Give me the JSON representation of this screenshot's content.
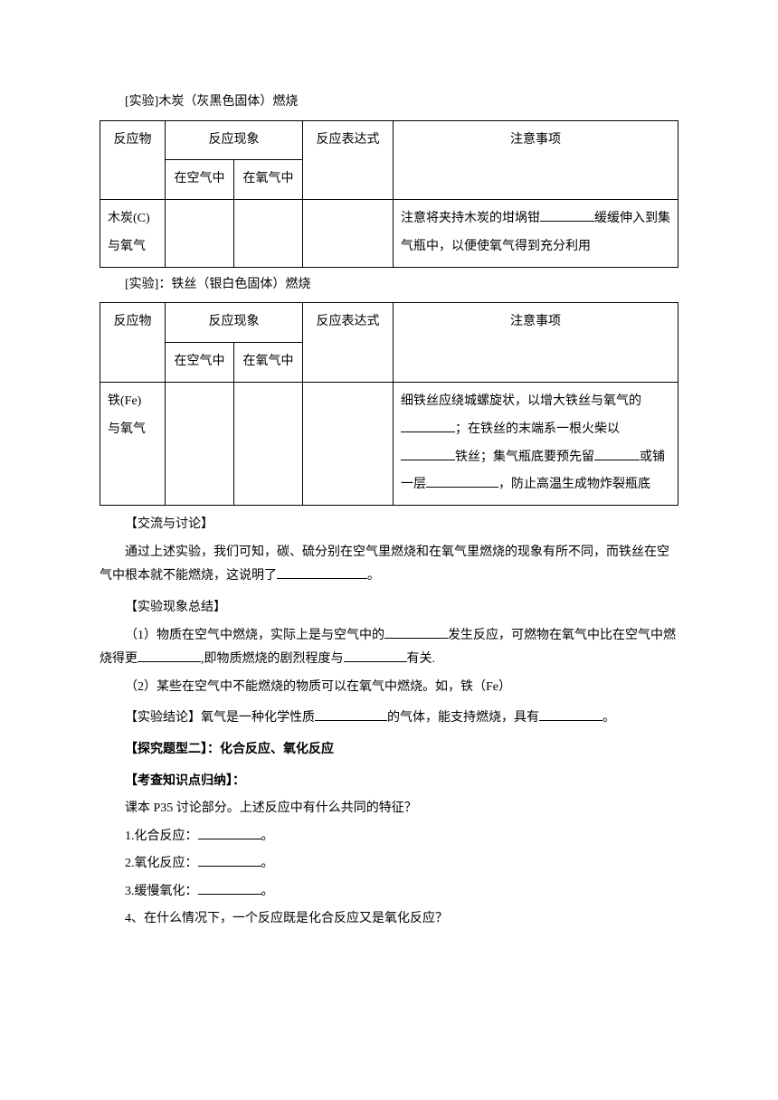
{
  "experiment1": {
    "title": "[实验]木炭（灰黑色固体）燃烧",
    "table": {
      "headers": {
        "reactant": "反应物",
        "phenomenon": "反应现象",
        "in_air": "在空气中",
        "in_oxygen": "在氧气中",
        "expression": "反应表达式",
        "notes": "注意事项"
      },
      "row": {
        "reactant_line1": "木炭(C)",
        "reactant_line2": "与氧气",
        "notes_before": "注意将夹持木炭的坩埚钳",
        "notes_after": "缓缓伸入到集气瓶中，以便使氧气得到充分利用"
      }
    }
  },
  "experiment2": {
    "title": "[实验]：铁丝（银白色固体）燃烧",
    "table": {
      "headers": {
        "reactant": "反应物",
        "phenomenon": "反应现象",
        "in_air": "在空气中",
        "in_oxygen": "在氧气中",
        "expression": "反应表达式",
        "notes": "注意事项"
      },
      "row": {
        "reactant_line1": "铁(Fe)",
        "reactant_line2": "与氧气",
        "notes_p1": "细铁丝应绕城螺旋状，以增大铁丝与氧气的",
        "notes_p2": "；在铁丝的末端系一根火柴以",
        "notes_p3": "铁丝；集气瓶底要预先留",
        "notes_p4": "或铺一层",
        "notes_p5": "，防止高温生成物炸裂瓶底"
      }
    }
  },
  "discussion": {
    "heading": "【交流与讨论】",
    "text_before": "通过上述实验，我们可知，碳、硫分别在空气里燃烧和在氧气里燃烧的现象有所不同，而铁丝在空气中根本就不能燃烧，这说明了",
    "text_after": "。"
  },
  "summary": {
    "heading": "【实验现象总结】",
    "item1_before": "（1）物质在空气中燃烧，实际上是与空气中的",
    "item1_mid1": "发生反应，可燃物在氧气中比在空气中燃烧得更",
    "item1_mid2": ",即物质燃烧的剧烈程度与",
    "item1_after": "有关.",
    "item2": "（2）某些在空气中不能燃烧的物质可以在氧气中燃烧。如，铁（Fe）"
  },
  "conclusion": {
    "heading": "【实验结论】",
    "text_before": "氧气是一种化学性质",
    "text_mid": "的气体，能支持燃烧，具有",
    "text_after": "。"
  },
  "explore": {
    "heading": "【探究题型二】",
    "text": "：化合反应、氧化反应"
  },
  "knowledge": {
    "heading": "【考查知识点归纳】",
    "colon": "：",
    "intro": "课本 P35 讨论部分。上述反应中有什么共同的特征？",
    "item1": "1.化合反应：",
    "item2": "2.氧化反应：",
    "item3": "3.缓慢氧化：",
    "item4": "4、在什么情况下，一个反应既是化合反应又是氧化反应？",
    "period": "。"
  }
}
